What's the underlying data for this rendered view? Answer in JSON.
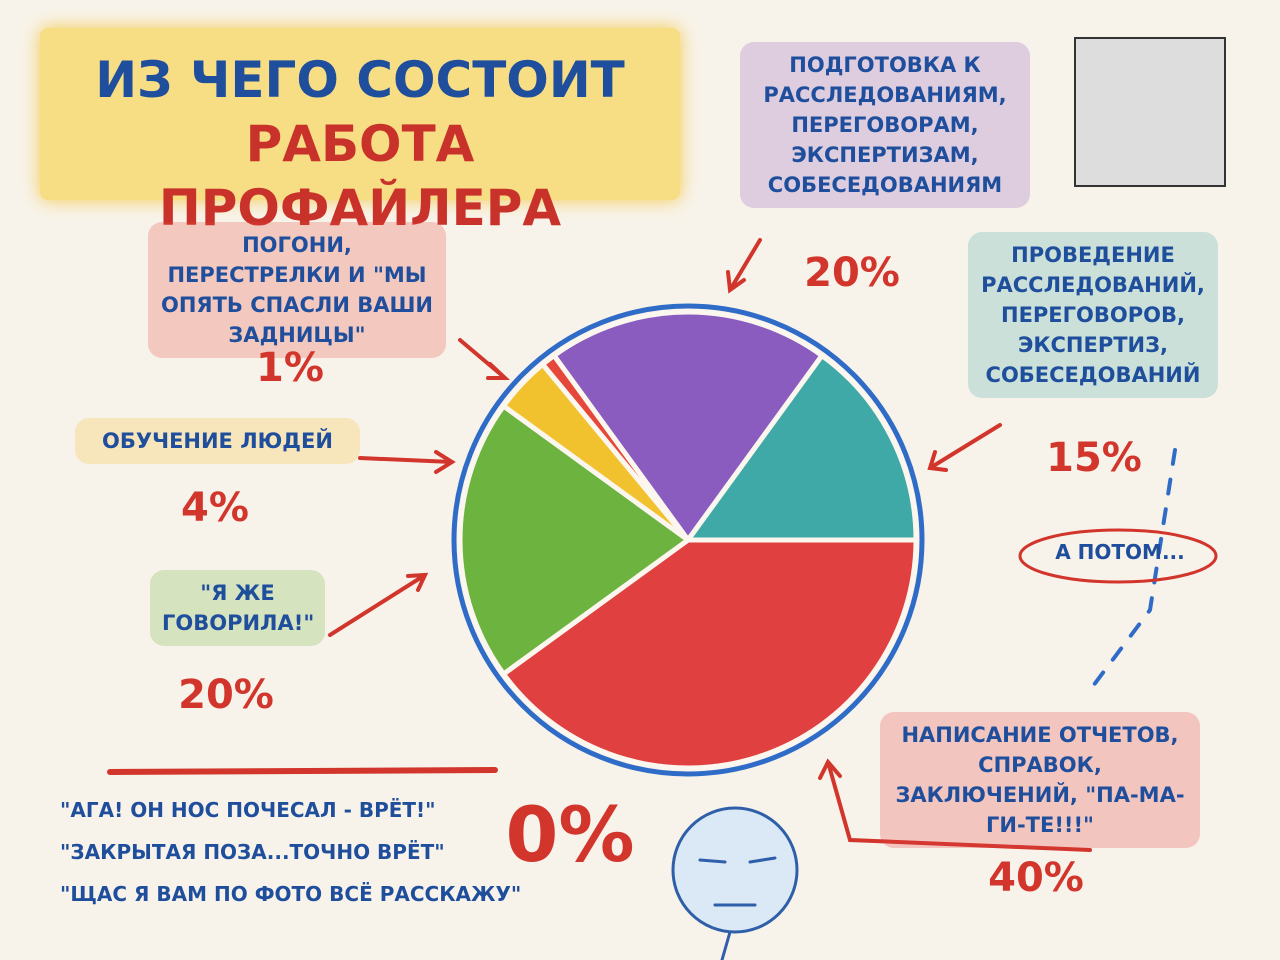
{
  "chart_data": {
    "type": "pie",
    "title": "ИЗ ЧЕГО СОСТОИТ",
    "subtitle": "РАБОТА ПРОФАЙЛЕРА",
    "categories": [
      "ПОДГОТОВКА К РАССЛЕДОВАНИЯМ, ПЕРЕГОВОРАМ, ЭКСПЕРТИЗАМ, СОБЕСЕДОВАНИЯМ",
      "ПРОВЕДЕНИЕ РАССЛЕДОВАНИЙ, ПЕРЕГОВОРОВ, ЭКСПЕРТИЗ, СОБЕСЕДОВАНИЙ",
      "НАПИСАНИЕ ОТЧЕТОВ, СПРАВОК, ЗАКЛЮЧЕНИЙ, \"ПА-МА-ГИ-ТЕ!!!\"",
      "\"Я ЖЕ ГОВОРИЛА!\"",
      "ОБУЧЕНИЕ ЛЮДЕЙ",
      "ПОГОНИ, ПЕРЕСТРЕЛКИ И \"МЫ ОПЯТЬ СПАСЛИ ВАШИ ЗАДНИЦЫ\""
    ],
    "values": [
      20,
      15,
      40,
      20,
      4,
      1
    ],
    "value_labels": [
      "20%",
      "15%",
      "40%",
      "20%",
      "4%",
      "1%"
    ],
    "colors": [
      "#8a5cc0",
      "#3fa9a8",
      "#e0403f",
      "#6db33f",
      "#f2c12e",
      "#e5483a"
    ],
    "annotation": "А ПОТОМ...",
    "extra": {
      "texts": [
        "\"АГА! ОН НОС ПОЧЕСАЛ - ВРЁТ!\"",
        "\"ЗАКРЫТАЯ ПОЗА...ТОЧНО ВРЁТ\"",
        "\"ЩАС Я ВАМ ПО ФОТО ВСЁ РАССКАЖУ\""
      ],
      "value": 0,
      "value_label": "0%"
    }
  }
}
